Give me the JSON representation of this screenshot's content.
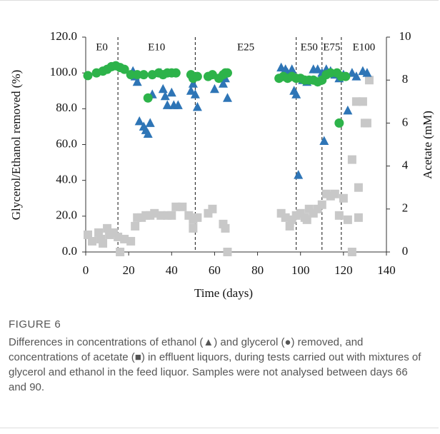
{
  "chart_data": {
    "type": "scatter",
    "xlabel": "Time (days)",
    "ylabel": "Glycerol/Ethanol removed (%)",
    "y2label": "Acetate (mM)",
    "xlim": [
      0,
      140
    ],
    "xticks": [
      0,
      20,
      40,
      60,
      80,
      100,
      120,
      140
    ],
    "ylim": [
      0,
      120
    ],
    "yticks": [
      {
        "value": 0,
        "label": "0.0"
      },
      {
        "value": 20,
        "label": "20.0"
      },
      {
        "value": 40,
        "label": "40.0"
      },
      {
        "value": 60,
        "label": "60.0"
      },
      {
        "value": 80,
        "label": "80.0"
      },
      {
        "value": 100,
        "label": "100.0"
      },
      {
        "value": 120,
        "label": "120.0"
      }
    ],
    "y2lim": [
      0,
      10
    ],
    "y2ticks": [
      0,
      2,
      4,
      6,
      8,
      10
    ],
    "phase_boundaries": [
      15,
      51,
      98,
      110,
      119
    ],
    "phase_labels": [
      "E0",
      "E10",
      "E25",
      "E50",
      "E75",
      "E100"
    ],
    "series": [
      {
        "marker": "square",
        "color": "#c8c8c8",
        "axis": "y2",
        "x": [
          1,
          3,
          6,
          7,
          8,
          10,
          11,
          13,
          15,
          16,
          18,
          21,
          23,
          24,
          26,
          28,
          30,
          32,
          35,
          38,
          40,
          42,
          45,
          48,
          50,
          50,
          52,
          57,
          59,
          64,
          65,
          66,
          91,
          93,
          95,
          96,
          98,
          100,
          102,
          103,
          104,
          106,
          108,
          110,
          112,
          114,
          116,
          118,
          120,
          122,
          124,
          124,
          126,
          127,
          127,
          129,
          130,
          131,
          132
        ],
        "values": [
          0.8,
          0.5,
          0.9,
          0.6,
          0.4,
          1.1,
          0.8,
          0.9,
          0.7,
          0,
          0.6,
          0.5,
          1.2,
          1.6,
          1.6,
          1.7,
          1.7,
          1.8,
          1.7,
          1.7,
          1.7,
          2.1,
          2.1,
          1.7,
          1.5,
          1.1,
          1.6,
          1.8,
          2.0,
          1.3,
          1.1,
          0,
          1.8,
          1.6,
          1.2,
          1.5,
          1.7,
          1.8,
          1.6,
          1.5,
          2.0,
          1.8,
          2.0,
          2.2,
          2.7,
          2.6,
          2.7,
          1.7,
          2.5,
          1.5,
          0,
          4.3,
          7,
          3,
          1.6,
          7,
          6,
          6,
          8
        ]
      },
      {
        "marker": "triangle",
        "color": "#2e75b6",
        "x": [
          22,
          23,
          24,
          25,
          27,
          28,
          29,
          30,
          31,
          34,
          35,
          36,
          37,
          38,
          40,
          41,
          43,
          49,
          50,
          51,
          52,
          60,
          64,
          65,
          66,
          91,
          93,
          94,
          96,
          97,
          98,
          99,
          101,
          103,
          106,
          108,
          110,
          111,
          112,
          114,
          116,
          118,
          120,
          122,
          124,
          126,
          129,
          131
        ],
        "values": [
          101,
          98,
          95,
          73,
          70,
          68,
          66,
          72,
          88,
          100,
          100,
          91,
          87,
          82,
          89,
          82,
          82,
          90,
          94,
          88,
          81,
          91,
          94,
          97,
          86,
          103,
          102,
          100,
          102,
          90,
          88,
          43,
          96,
          95,
          102,
          102,
          100,
          62,
          102,
          101,
          99,
          97,
          99,
          79,
          100,
          98,
          101,
          100
        ]
      },
      {
        "marker": "circle",
        "color": "#2db34a",
        "x": [
          1,
          5,
          8,
          10,
          12,
          14,
          16,
          18,
          21,
          24,
          27,
          29,
          31,
          34,
          36,
          38,
          40,
          42,
          49,
          50,
          52,
          57,
          59,
          62,
          64,
          65,
          66,
          90,
          92,
          94,
          96,
          98,
          100,
          102,
          104,
          106,
          108,
          110,
          112,
          114,
          117,
          119,
          121,
          118
        ],
        "values": [
          98.5,
          100,
          101,
          102,
          103.5,
          104,
          103,
          102,
          99,
          99,
          99,
          86,
          99,
          100,
          99,
          100,
          100,
          100,
          99,
          97,
          98,
          98,
          99,
          97,
          99,
          100,
          100,
          97,
          98,
          97,
          98,
          97,
          97,
          96,
          96,
          96,
          95,
          96,
          99,
          100,
          100,
          98,
          98,
          72
        ]
      }
    ]
  },
  "caption": {
    "label": "FIGURE 6",
    "text": "Differences in concentrations of ethanol (▲) and glycerol (●) removed, and concentrations of acetate (■) in effluent liquors, during tests carried out with mixtures of glycerol and ethanol in the feed liquor. Samples were not analysed between days 66 and 90."
  }
}
